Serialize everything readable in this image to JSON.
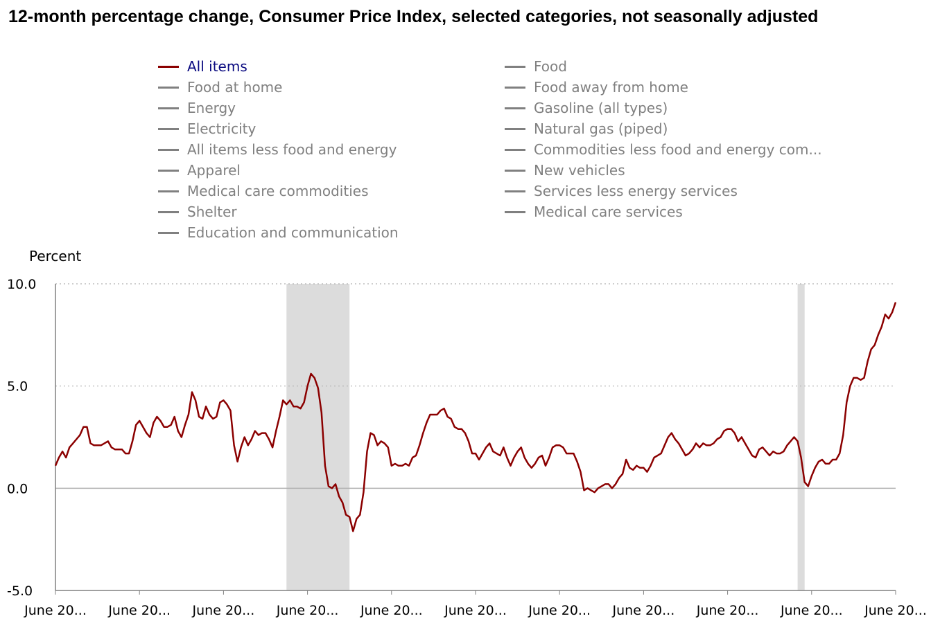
{
  "title": "12-month percentage change, Consumer Price Index, selected categories, not seasonally adjusted",
  "legend": {
    "items": [
      {
        "label": "All items",
        "active": true
      },
      {
        "label": "Food",
        "active": false
      },
      {
        "label": "Food at home",
        "active": false
      },
      {
        "label": "Food away from home",
        "active": false
      },
      {
        "label": "Energy",
        "active": false
      },
      {
        "label": "Gasoline (all types)",
        "active": false
      },
      {
        "label": "Electricity",
        "active": false
      },
      {
        "label": "Natural gas (piped)",
        "active": false
      },
      {
        "label": "All items less food and energy",
        "active": false
      },
      {
        "label": "Commodities less food and energy com...",
        "active": false
      },
      {
        "label": "Apparel",
        "active": false
      },
      {
        "label": "New vehicles",
        "active": false
      },
      {
        "label": "Medical care commodities",
        "active": false
      },
      {
        "label": "Services less energy services",
        "active": false
      },
      {
        "label": "Shelter",
        "active": false
      },
      {
        "label": "Medical care services",
        "active": false
      },
      {
        "label": "Education and communication",
        "active": false
      }
    ]
  },
  "colors": {
    "active_series": "#8b0000",
    "inactive_series": "#808080",
    "active_legend_text": "#0a0a80",
    "recession_shade": "#dcdcdc",
    "gridline": "#b0b0b0",
    "axis": "#808080"
  },
  "chart_data": {
    "type": "line",
    "title": "12-month percentage change, Consumer Price Index, selected categories, not seasonally adjusted",
    "ylabel": "Percent",
    "xlabel": "",
    "ylim": [
      -5,
      10
    ],
    "xlim": [
      "2002-06",
      "2022-06"
    ],
    "y_ticks": [
      {
        "value": 10,
        "label": "10.0"
      },
      {
        "value": 5,
        "label": "5.0"
      },
      {
        "value": 0,
        "label": "0.0"
      },
      {
        "value": -5,
        "label": "-5.0"
      }
    ],
    "x_ticks": [
      {
        "value": "2002-06",
        "label": "June 20..."
      },
      {
        "value": "2004-06",
        "label": "June 20..."
      },
      {
        "value": "2006-06",
        "label": "June 20..."
      },
      {
        "value": "2008-06",
        "label": "June 20..."
      },
      {
        "value": "2010-06",
        "label": "June 20..."
      },
      {
        "value": "2012-06",
        "label": "June 20..."
      },
      {
        "value": "2014-06",
        "label": "June 20..."
      },
      {
        "value": "2016-06",
        "label": "June 20..."
      },
      {
        "value": "2018-06",
        "label": "June 20..."
      },
      {
        "value": "2020-06",
        "label": "June 20..."
      },
      {
        "value": "2022-06",
        "label": "June 20..."
      }
    ],
    "grid": true,
    "legend_position": "top",
    "recessions": [
      {
        "start": "2007-12",
        "end": "2009-06"
      },
      {
        "start": "2020-02",
        "end": "2020-04"
      }
    ],
    "series": [
      {
        "name": "All items",
        "x_start": "2002-06",
        "frequency": "monthly",
        "values": [
          1.1,
          1.5,
          1.8,
          1.5,
          2.0,
          2.2,
          2.4,
          2.6,
          3.0,
          3.0,
          2.2,
          2.1,
          2.1,
          2.1,
          2.2,
          2.3,
          2.0,
          1.9,
          1.9,
          1.9,
          1.7,
          1.7,
          2.3,
          3.1,
          3.3,
          3.0,
          2.7,
          2.5,
          3.2,
          3.5,
          3.3,
          3.0,
          3.0,
          3.1,
          3.5,
          2.8,
          2.5,
          3.1,
          3.6,
          4.7,
          4.3,
          3.5,
          3.4,
          4.0,
          3.6,
          3.4,
          3.5,
          4.2,
          4.3,
          4.1,
          3.8,
          2.1,
          1.3,
          2.0,
          2.5,
          2.1,
          2.4,
          2.8,
          2.6,
          2.7,
          2.7,
          2.4,
          2.0,
          2.8,
          3.5,
          4.3,
          4.1,
          4.3,
          4.0,
          4.0,
          3.9,
          4.2,
          5.0,
          5.6,
          5.4,
          4.9,
          3.7,
          1.1,
          0.1,
          0.0,
          0.2,
          -0.4,
          -0.7,
          -1.3,
          -1.4,
          -2.1,
          -1.5,
          -1.3,
          -0.2,
          1.8,
          2.7,
          2.6,
          2.1,
          2.3,
          2.2,
          2.0,
          1.1,
          1.2,
          1.1,
          1.1,
          1.2,
          1.1,
          1.5,
          1.6,
          2.1,
          2.7,
          3.2,
          3.6,
          3.6,
          3.6,
          3.8,
          3.9,
          3.5,
          3.4,
          3.0,
          2.9,
          2.9,
          2.7,
          2.3,
          1.7,
          1.7,
          1.4,
          1.7,
          2.0,
          2.2,
          1.8,
          1.7,
          1.6,
          2.0,
          1.5,
          1.1,
          1.5,
          1.8,
          2.0,
          1.5,
          1.2,
          1.0,
          1.2,
          1.5,
          1.6,
          1.1,
          1.5,
          2.0,
          2.1,
          2.1,
          2.0,
          1.7,
          1.7,
          1.7,
          1.3,
          0.8,
          -0.1,
          0.0,
          -0.1,
          -0.2,
          0.0,
          0.1,
          0.2,
          0.2,
          0.0,
          0.2,
          0.5,
          0.7,
          1.4,
          1.0,
          0.9,
          1.1,
          1.0,
          1.0,
          0.8,
          1.1,
          1.5,
          1.6,
          1.7,
          2.1,
          2.5,
          2.7,
          2.4,
          2.2,
          1.9,
          1.6,
          1.7,
          1.9,
          2.2,
          2.0,
          2.2,
          2.1,
          2.1,
          2.2,
          2.4,
          2.5,
          2.8,
          2.9,
          2.9,
          2.7,
          2.3,
          2.5,
          2.2,
          1.9,
          1.6,
          1.5,
          1.9,
          2.0,
          1.8,
          1.6,
          1.8,
          1.7,
          1.7,
          1.8,
          2.1,
          2.3,
          2.5,
          2.3,
          1.5,
          0.3,
          0.1,
          0.6,
          1.0,
          1.3,
          1.4,
          1.2,
          1.2,
          1.4,
          1.4,
          1.7,
          2.6,
          4.2,
          5.0,
          5.4,
          5.4,
          5.3,
          5.4,
          6.2,
          6.8,
          7.0,
          7.5,
          7.9,
          8.5,
          8.3,
          8.6,
          9.1
        ]
      }
    ]
  }
}
